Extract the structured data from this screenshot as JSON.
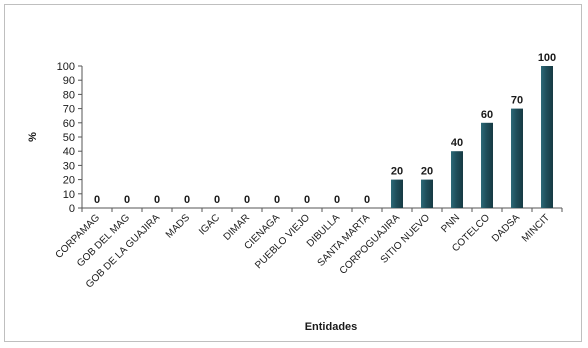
{
  "chart_data": {
    "type": "bar",
    "title": "",
    "xlabel": "Entidades",
    "ylabel": "%",
    "ylim": [
      0,
      100
    ],
    "yticks": [
      0,
      10,
      20,
      30,
      40,
      50,
      60,
      70,
      80,
      90,
      100
    ],
    "grid": false,
    "legend": "none",
    "bar_color": "#1f4e5a",
    "categories": [
      "CORPAMAG",
      "GOB DEL MAG",
      "GOB DE LA GUAJIRA",
      "MADS",
      "IGAC",
      "DIMAR",
      "CIENAGA",
      "PUEBLO VIEJO",
      "DIBULLA",
      "SANTA MARTA",
      "CORPOGUAJIRA",
      "SITIO NUEVO",
      "PNN",
      "COTELCO",
      "DADSA",
      "MINCIT"
    ],
    "values": [
      0,
      0,
      0,
      0,
      0,
      0,
      0,
      0,
      0,
      0,
      20,
      20,
      40,
      60,
      70,
      100
    ]
  }
}
